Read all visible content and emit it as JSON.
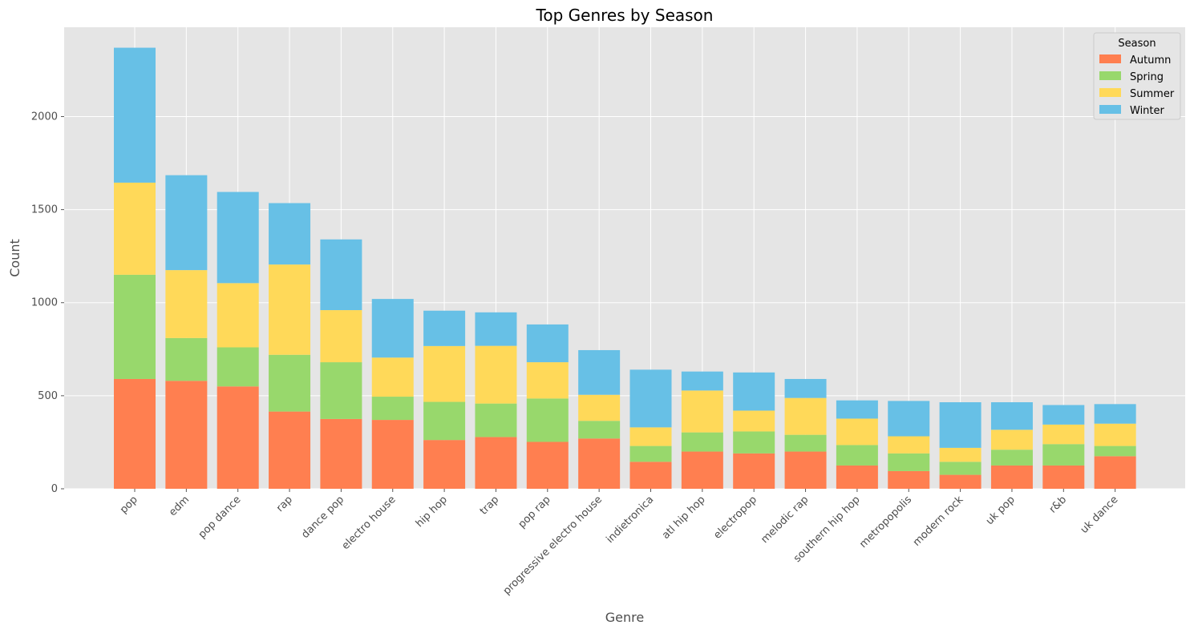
{
  "chart_data": {
    "type": "bar",
    "stacked": true,
    "title": "Top Genres by Season",
    "xlabel": "Genre",
    "ylabel": "Count",
    "ylim": [
      0,
      2480
    ],
    "yticks": [
      0,
      500,
      1000,
      1500,
      2000
    ],
    "grid": true,
    "legend": {
      "title": "Season",
      "placement": "top-right"
    },
    "categories": [
      "pop",
      "edm",
      "pop dance",
      "rap",
      "dance pop",
      "electro house",
      "hip hop",
      "trap",
      "pop rap",
      "progressive electro house",
      "indietronica",
      "atl hip hop",
      "electropop",
      "melodic rap",
      "southern hip hop",
      "metropopolis",
      "modern rock",
      "uk pop",
      "r&b",
      "uk dance"
    ],
    "series": [
      {
        "name": "Autumn",
        "color": "#ff7f50",
        "values": [
          590,
          580,
          550,
          415,
          375,
          370,
          262,
          278,
          252,
          270,
          145,
          200,
          190,
          200,
          125,
          95,
          75,
          125,
          125,
          175
        ]
      },
      {
        "name": "Spring",
        "color": "#98d86c",
        "values": [
          560,
          230,
          210,
          305,
          305,
          125,
          205,
          180,
          233,
          95,
          85,
          103,
          118,
          90,
          110,
          95,
          70,
          85,
          115,
          55
        ]
      },
      {
        "name": "Summer",
        "color": "#ffd959",
        "values": [
          495,
          365,
          345,
          485,
          280,
          210,
          300,
          310,
          195,
          140,
          100,
          225,
          112,
          198,
          142,
          92,
          75,
          107,
          105,
          120
        ]
      },
      {
        "name": "Winter",
        "color": "#67c0e6",
        "values": [
          725,
          510,
          490,
          330,
          380,
          315,
          190,
          180,
          203,
          240,
          310,
          102,
          205,
          102,
          98,
          190,
          245,
          148,
          105,
          105
        ]
      }
    ]
  }
}
